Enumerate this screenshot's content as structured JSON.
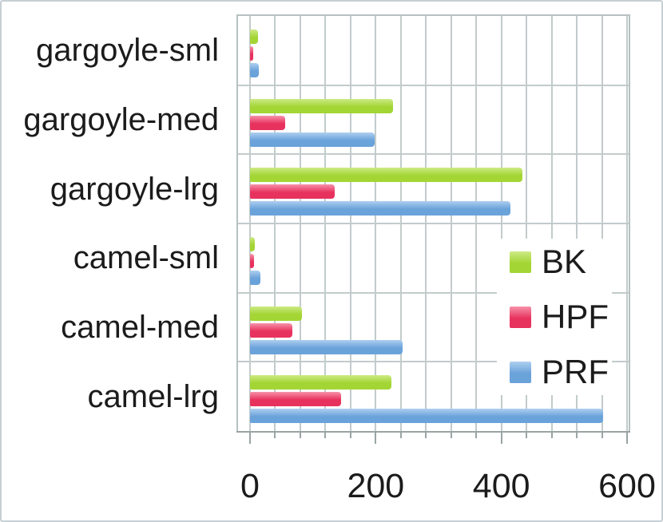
{
  "chart_data": {
    "type": "bar",
    "orientation": "horizontal",
    "title": "",
    "xlabel": "",
    "ylabel": "",
    "categories": [
      "gargoyle-sml",
      "gargoyle-med",
      "gargoyle-lrg",
      "camel-sml",
      "camel-med",
      "camel-lrg"
    ],
    "series": [
      {
        "name": "BK",
        "color": "#a3d534",
        "color_light": "#cdea85",
        "values": [
          13,
          227,
          433,
          8,
          83,
          225
        ]
      },
      {
        "name": "HPF",
        "color": "#e8325e",
        "color_light": "#f792a9",
        "values": [
          5,
          56,
          135,
          6,
          67,
          145
        ]
      },
      {
        "name": "PRF",
        "color": "#6aa2da",
        "color_light": "#aecff0",
        "values": [
          14,
          198,
          414,
          17,
          243,
          562
        ]
      }
    ],
    "xlim": [
      0,
      600
    ],
    "x_major_unit": 200,
    "x_minor_unit": 40,
    "x_tick_labels": [
      "0",
      "200",
      "400",
      "600"
    ],
    "grid": "on",
    "legend_position": "inside-right"
  },
  "colors": {
    "grid": "#c2cbcb",
    "axis": "#9aa4a4",
    "text": "#1b1b1b",
    "background": "#ffffff",
    "frame": "#c7d0d4"
  }
}
